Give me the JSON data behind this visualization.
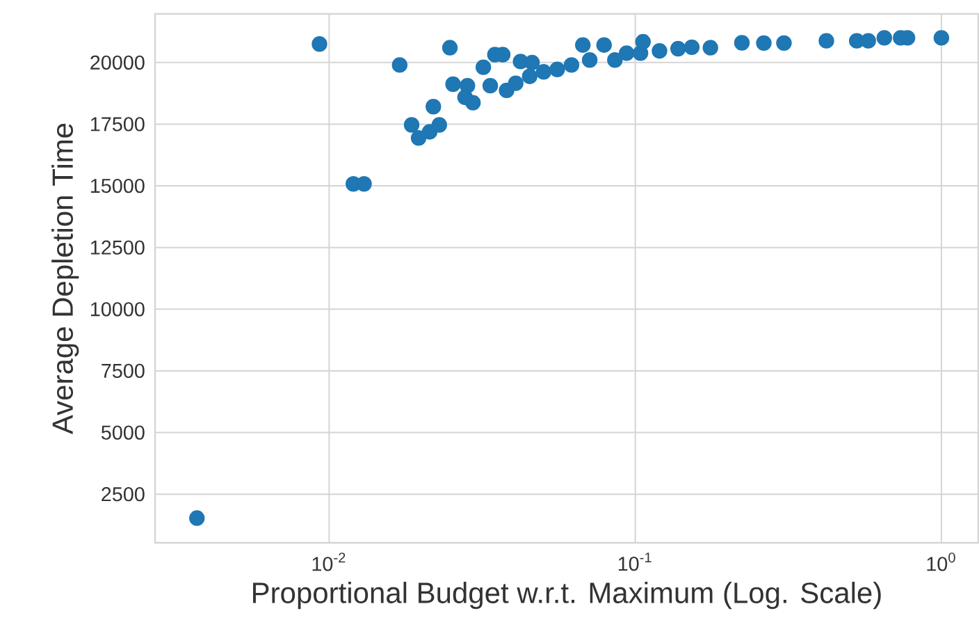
{
  "chart_data": {
    "type": "scatter",
    "xlabel": "Proportional Budget w.r.t. Maximum (Log. Scale)",
    "ylabel": "Average Depletion Time",
    "log": "x",
    "grid": true,
    "marker": "circle",
    "xlim": [
      0.0027,
      1.32
    ],
    "ylim": [
      530,
      21970
    ],
    "xticks": [
      {
        "value": 0.01,
        "label": "10$^{-2}$"
      },
      {
        "value": 0.1,
        "label": "10$^{-1}$"
      },
      {
        "value": 1,
        "label": "10$^{0}$"
      }
    ],
    "yticks": [
      2500,
      5000,
      7500,
      10000,
      12500,
      15000,
      17500,
      20000
    ],
    "series": [
      {
        "color": "#1f77b4",
        "x": [
          0.0037,
          0.0093,
          0.012,
          0.013,
          0.017,
          0.0248,
          0.0186,
          0.0196,
          0.0219,
          0.0229,
          0.0213,
          0.0254,
          0.0283,
          0.0295,
          0.0278,
          0.0319,
          0.0348,
          0.0369,
          0.0336,
          0.038,
          0.0422,
          0.046,
          0.0407,
          0.0452,
          0.0502,
          0.0556,
          0.0619,
          0.0674,
          0.0791,
          0.071,
          0.0858,
          0.0937,
          0.106,
          0.104,
          0.12,
          0.138,
          0.153,
          0.176,
          0.223,
          0.263,
          0.306,
          0.421,
          0.529,
          0.577,
          0.651,
          0.736,
          0.775,
          1.0
        ],
        "values": [
          1530,
          20750,
          15080,
          15080,
          19900,
          20600,
          17470,
          16940,
          18210,
          17470,
          17190,
          19120,
          19060,
          18370,
          18590,
          19810,
          20320,
          20320,
          19060,
          18870,
          20040,
          20000,
          19160,
          19440,
          19620,
          19720,
          19900,
          20710,
          20710,
          20100,
          20100,
          20380,
          20840,
          20380,
          20470,
          20560,
          20620,
          20600,
          20800,
          20790,
          20790,
          20880,
          20880,
          20880,
          21000,
          21000,
          21000,
          21000
        ]
      }
    ]
  }
}
